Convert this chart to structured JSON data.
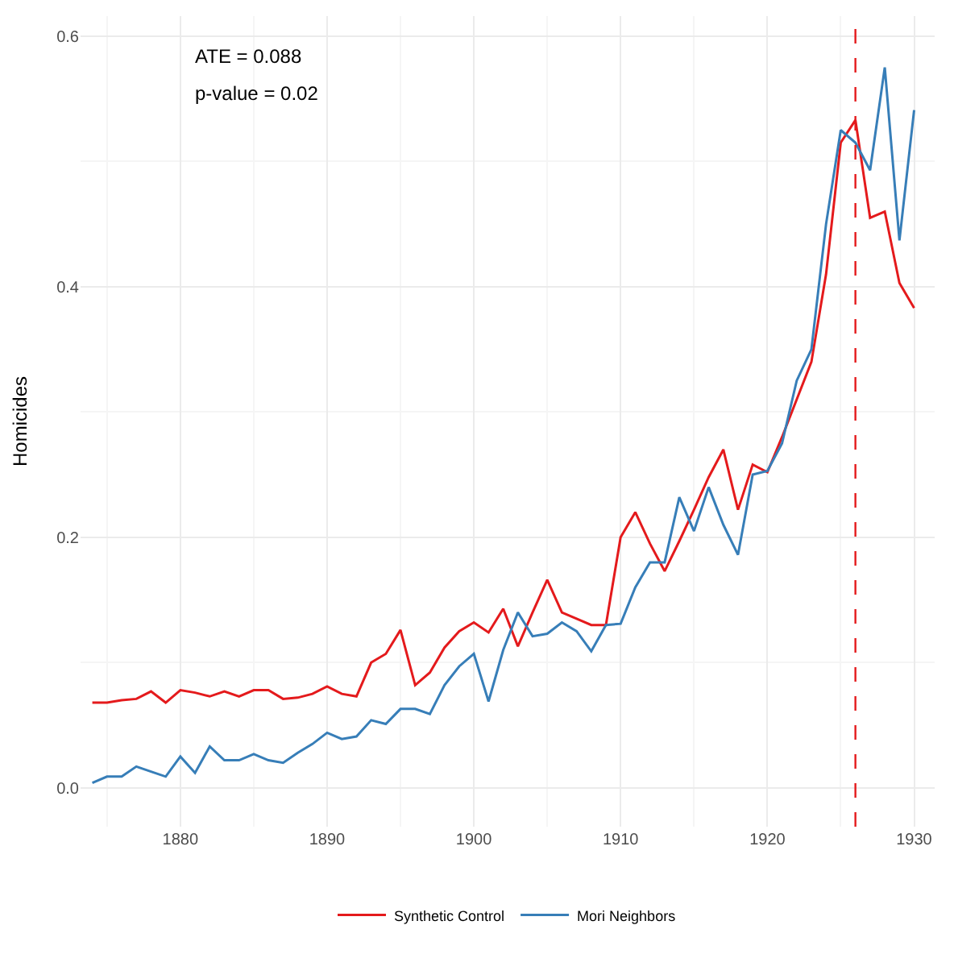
{
  "chart_data": {
    "type": "line",
    "ylabel": "Homicides",
    "x": [
      1874,
      1875,
      1876,
      1877,
      1878,
      1879,
      1880,
      1881,
      1882,
      1883,
      1884,
      1885,
      1886,
      1887,
      1888,
      1889,
      1890,
      1891,
      1892,
      1893,
      1894,
      1895,
      1896,
      1897,
      1898,
      1899,
      1900,
      1901,
      1902,
      1903,
      1904,
      1905,
      1906,
      1907,
      1908,
      1909,
      1910,
      1911,
      1912,
      1913,
      1914,
      1915,
      1916,
      1917,
      1918,
      1919,
      1920,
      1921,
      1922,
      1923,
      1924,
      1925,
      1926,
      1927,
      1928,
      1929,
      1930
    ],
    "series": [
      {
        "name": "Synthetic Control",
        "color": "#e41a1c",
        "values": [
          0.068,
          0.068,
          0.07,
          0.071,
          0.077,
          0.068,
          0.078,
          0.076,
          0.073,
          0.077,
          0.073,
          0.078,
          0.078,
          0.071,
          0.072,
          0.075,
          0.081,
          0.075,
          0.073,
          0.1,
          0.107,
          0.126,
          0.082,
          0.092,
          0.112,
          0.125,
          0.132,
          0.124,
          0.143,
          0.113,
          0.14,
          0.166,
          0.14,
          0.135,
          0.13,
          0.13,
          0.2,
          0.22,
          0.195,
          0.173,
          0.197,
          0.222,
          0.248,
          0.27,
          0.222,
          0.258,
          0.252,
          0.28,
          0.31,
          0.34,
          0.41,
          0.515,
          0.533,
          0.455,
          0.46,
          0.403,
          0.383
        ]
      },
      {
        "name": "Mori Neighbors",
        "color": "#377eb8",
        "values": [
          0.004,
          0.009,
          0.009,
          0.017,
          0.013,
          0.009,
          0.025,
          0.012,
          0.033,
          0.022,
          0.022,
          0.027,
          0.022,
          0.02,
          0.028,
          0.035,
          0.044,
          0.039,
          0.041,
          0.054,
          0.051,
          0.063,
          0.063,
          0.059,
          0.082,
          0.097,
          0.107,
          0.069,
          0.11,
          0.14,
          0.121,
          0.123,
          0.132,
          0.125,
          0.109,
          0.13,
          0.131,
          0.16,
          0.18,
          0.18,
          0.232,
          0.205,
          0.24,
          0.21,
          0.186,
          0.25,
          0.253,
          0.275,
          0.325,
          0.35,
          0.45,
          0.525,
          0.515,
          0.493,
          0.575,
          0.437,
          0.541
        ]
      }
    ],
    "xlim": [
      1873.2,
      1931.4
    ],
    "xticks": [
      1880,
      1890,
      1900,
      1910,
      1920,
      1930
    ],
    "ylim": [
      -0.031,
      0.616
    ],
    "yticks": [
      {
        "value": 0,
        "label": "0.0"
      },
      0.2,
      0.4,
      0.6
    ],
    "ref_lines": [
      {
        "axis": "x",
        "value": 1926,
        "color": "#e41a1c",
        "line_style": "dashed"
      }
    ],
    "annotations": [
      "ATE = 0.088",
      "p-value = 0.02"
    ],
    "grid": true,
    "legend": "bottom",
    "line_style": "solid",
    "marker": "none"
  }
}
